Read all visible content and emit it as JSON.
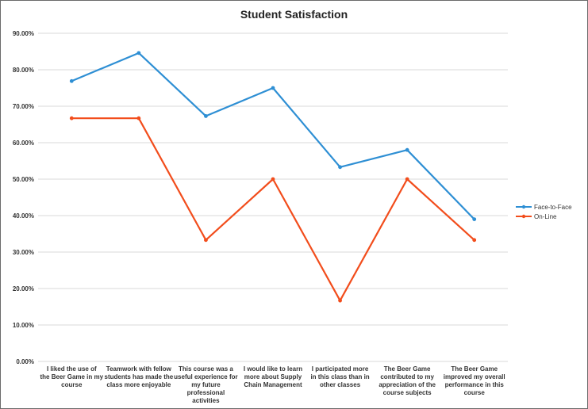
{
  "chart_data": {
    "type": "line",
    "title": "Student Satisfaction",
    "xlabel": "",
    "ylabel": "",
    "ylim": [
      0,
      90
    ],
    "yticks": [
      "0.00%",
      "10.00%",
      "20.00%",
      "30.00%",
      "40.00%",
      "50.00%",
      "60.00%",
      "70.00%",
      "80.00%",
      "90.00%"
    ],
    "grid": true,
    "legend_position": "right",
    "categories": [
      "I liked the use of the Beer Game  in my course",
      "Teamwork with fellow students has made the class more enjoyable",
      "This course was a useful experience for my future professional activities",
      "I would like to learn more about Supply Chain Management",
      "I participated more in this class than in other classes",
      "The Beer Game contributed to my appreciation of the course subjects",
      "The Beer Game improved my overall performance in this course"
    ],
    "series": [
      {
        "name": "Face-to-Face",
        "color": "#2e8fd4",
        "values": [
          76.9,
          84.6,
          67.3,
          75.0,
          53.3,
          58.0,
          39.0
        ]
      },
      {
        "name": "On-Line",
        "color": "#f24d1c",
        "values": [
          66.7,
          66.7,
          33.3,
          50.0,
          16.7,
          50.0,
          33.3
        ]
      }
    ]
  }
}
